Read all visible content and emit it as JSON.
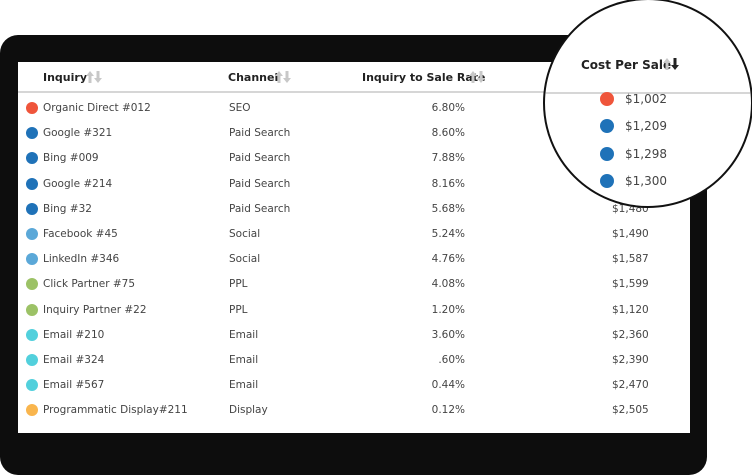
{
  "table": {
    "headers": [
      "Inquiry",
      "Channel",
      "Inquiry to Sale Rate",
      "Cost Per Sale"
    ],
    "rows": [
      {
        "color": "#ef553b",
        "cells": [
          "Organic Direct #012",
          "SEO",
          "6.80%",
          "$1,002"
        ]
      },
      {
        "color": "#1f72b8",
        "cells": [
          "Google #321",
          "Paid Search",
          "8.60%",
          "$1,209"
        ]
      },
      {
        "color": "#1f72b8",
        "cells": [
          "Bing #009",
          "Paid Search",
          "7.88%",
          "$1,298"
        ]
      },
      {
        "color": "#1f72b8",
        "cells": [
          "Google #214",
          "Paid Search",
          "8.16%",
          "$1,300"
        ]
      },
      {
        "color": "#1f72b8",
        "cells": [
          "Bing #32",
          "Paid Search",
          "5.68%",
          "$1,480"
        ]
      },
      {
        "color": "#5ba8d8",
        "cells": [
          "Facebook #45",
          "Social",
          "5.24%",
          "$1,490"
        ]
      },
      {
        "color": "#5ba8d8",
        "cells": [
          "LinkedIn #346",
          "Social",
          "4.76%",
          "$1,587"
        ]
      },
      {
        "color": "#9cc266",
        "cells": [
          "Click Partner #75",
          "PPL",
          "4.08%",
          "$1,599"
        ]
      },
      {
        "color": "#9cc266",
        "cells": [
          "Inquiry Partner #22",
          "PPL",
          "1.20%",
          "$1,120"
        ]
      },
      {
        "color": "#52d0dc",
        "cells": [
          "Email #210",
          "Email",
          "3.60%",
          "$2,360"
        ]
      },
      {
        "color": "#52d0dc",
        "cells": [
          "Email #324",
          "Email",
          ".60%",
          "$2,390"
        ]
      },
      {
        "color": "#52d0dc",
        "cells": [
          "Email #567",
          "Email",
          "0.44%",
          "$2,470"
        ]
      },
      {
        "color": "#f9b54d",
        "cells": [
          "Programmatic Display#211",
          "Display",
          "0.12%",
          "$2,505"
        ]
      }
    ]
  }
}
